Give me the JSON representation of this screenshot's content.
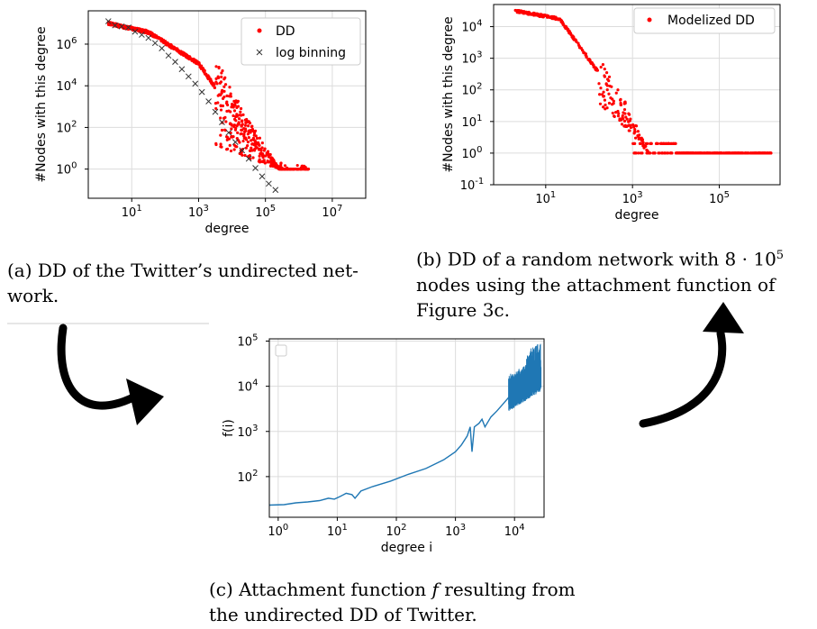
{
  "captions": {
    "a_prefix": "(a) DD of the Twitter’s undirected net-",
    "a_suffix": "work.",
    "b_line1": "(b) DD of a random network with 8 · 10",
    "b_exp": "5",
    "b_line2": "nodes using the attachment function of",
    "b_line3": "Figure 3c.",
    "c_line1": "(c) Attachment function",
    "c_f": "f",
    "c_line1_end": "resulting from",
    "c_line2": "the undirected DD of Twitter."
  },
  "chart_data": [
    {
      "id": "a",
      "type": "scatter",
      "xlabel": "degree",
      "ylabel": "#Nodes with this degree",
      "xscale": "log",
      "yscale": "log",
      "xlim_exp": [
        -0.3,
        8.0
      ],
      "ylim_exp": [
        -1.4,
        7.6
      ],
      "xticks": [
        "10^1",
        "10^3",
        "10^5",
        "10^7"
      ],
      "yticks": [
        "10^0",
        "10^2",
        "10^4",
        "10^6"
      ],
      "legend_position": "top-right",
      "series": [
        {
          "name": "DD",
          "marker": "dot",
          "color": "#ff0000"
        },
        {
          "name": "log binning",
          "marker": "x",
          "color": "#333333",
          "points_exp": [
            [
              0.3,
              7.1
            ],
            [
              0.5,
              6.9
            ],
            [
              0.7,
              6.85
            ],
            [
              0.9,
              6.8
            ],
            [
              1.1,
              6.6
            ],
            [
              1.3,
              6.45
            ],
            [
              1.5,
              6.3
            ],
            [
              1.7,
              6.05
            ],
            [
              1.9,
              5.8
            ],
            [
              2.1,
              5.45
            ],
            [
              2.3,
              5.15
            ],
            [
              2.5,
              4.8
            ],
            [
              2.7,
              4.45
            ],
            [
              2.9,
              4.1
            ],
            [
              3.1,
              3.7
            ],
            [
              3.3,
              3.25
            ],
            [
              3.5,
              2.75
            ],
            [
              3.7,
              2.25
            ],
            [
              3.9,
              1.75
            ],
            [
              4.1,
              1.3
            ],
            [
              4.3,
              0.9
            ],
            [
              4.5,
              0.5
            ],
            [
              4.7,
              0.05
            ],
            [
              4.9,
              -0.35
            ],
            [
              5.1,
              -0.7
            ],
            [
              5.3,
              -1.0
            ]
          ]
        }
      ],
      "grid": true
    },
    {
      "id": "b",
      "type": "scatter",
      "xlabel": "degree",
      "ylabel": "#Nodes with this degree",
      "xscale": "log",
      "yscale": "log",
      "xlim_exp": [
        -0.2,
        6.4
      ],
      "ylim_exp": [
        -1,
        4.7
      ],
      "xticks": [
        "10^1",
        "10^3",
        "10^5"
      ],
      "yticks": [
        "10^-1",
        "10^0",
        "10^1",
        "10^2",
        "10^3",
        "10^4"
      ],
      "legend_position": "top-right",
      "series": [
        {
          "name": "Modelized DD",
          "marker": "dot",
          "color": "#ff0000"
        }
      ],
      "grid": true
    },
    {
      "id": "c",
      "type": "line",
      "xlabel": "degree i",
      "ylabel": "f(i)",
      "xscale": "log",
      "yscale": "log",
      "xlim_exp": [
        -0.15,
        4.5
      ],
      "ylim_exp": [
        1.1,
        5.05
      ],
      "xticks": [
        "10^0",
        "10^1",
        "10^2",
        "10^3",
        "10^4"
      ],
      "yticks": [
        "10^2",
        "10^3",
        "10^4",
        "10^5"
      ],
      "series": [
        {
          "color": "#1f77b4",
          "points_exp": [
            [
              -0.15,
              1.37
            ],
            [
              0.1,
              1.38
            ],
            [
              0.3,
              1.42
            ],
            [
              0.5,
              1.44
            ],
            [
              0.7,
              1.47
            ],
            [
              0.85,
              1.52
            ],
            [
              0.95,
              1.5
            ],
            [
              1.05,
              1.56
            ],
            [
              1.15,
              1.63
            ],
            [
              1.25,
              1.6
            ],
            [
              1.3,
              1.52
            ],
            [
              1.4,
              1.68
            ],
            [
              1.6,
              1.78
            ],
            [
              1.9,
              1.9
            ],
            [
              2.2,
              2.05
            ],
            [
              2.5,
              2.18
            ],
            [
              2.8,
              2.37
            ],
            [
              3.0,
              2.55
            ],
            [
              3.1,
              2.7
            ],
            [
              3.2,
              2.9
            ],
            [
              3.25,
              3.1
            ],
            [
              3.28,
              2.55
            ],
            [
              3.32,
              3.1
            ],
            [
              3.4,
              3.18
            ],
            [
              3.45,
              3.27
            ],
            [
              3.5,
              3.1
            ],
            [
              3.6,
              3.32
            ],
            [
              3.7,
              3.45
            ],
            [
              3.8,
              3.6
            ],
            [
              3.9,
              3.75
            ],
            [
              4.0,
              3.85
            ],
            [
              4.1,
              3.95
            ],
            [
              4.2,
              4.1
            ],
            [
              4.3,
              4.2
            ]
          ]
        }
      ],
      "grid": true,
      "legend_position": "top-left"
    }
  ]
}
